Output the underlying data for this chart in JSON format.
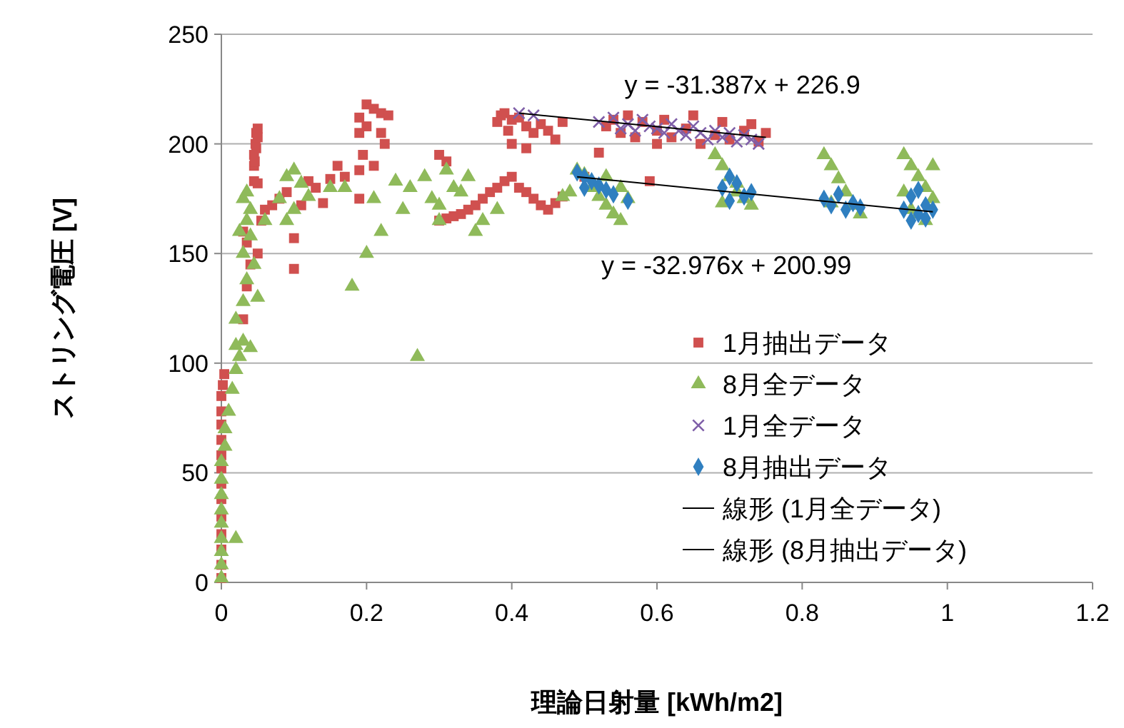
{
  "chart_data": {
    "type": "scatter",
    "xlabel": "理論日射量 [kWh/m2]",
    "ylabel": "ストリング電圧 [V]",
    "xlim": [
      0,
      1.2
    ],
    "xticks": [
      0,
      0.2,
      0.4,
      0.6,
      0.8,
      1,
      1.2
    ],
    "ylim": [
      0,
      250
    ],
    "yticks": [
      0,
      50,
      100,
      150,
      200,
      250
    ],
    "grid": "y",
    "legend": "right",
    "annotations": [
      "y = -31.387x + 226.9",
      "y = -32.976x + 200.99"
    ],
    "series": [
      {
        "name": "1月抽出データ",
        "color": "#d0504f",
        "marker": "square",
        "x": [
          0,
          0,
          0,
          0,
          0,
          0,
          0,
          0,
          0,
          0,
          0,
          0,
          0,
          0.002,
          0.004,
          0.045,
          0.045,
          0.047,
          0.048,
          0.05,
          0.048,
          0.046,
          0.05,
          0.045,
          0.05,
          0.03,
          0.035,
          0.04,
          0.05,
          0.055,
          0.06,
          0.07,
          0.08,
          0.09,
          0.03,
          0.035,
          0.1,
          0.1,
          0.13,
          0.15,
          0.17,
          0.16,
          0.19,
          0.11,
          0.14,
          0.12,
          0.19,
          0.2,
          0.21,
          0.22,
          0.2,
          0.19,
          0.22,
          0.23,
          0.225,
          0.195,
          0.21,
          0.19,
          0.3,
          0.31,
          0.3,
          0.31,
          0.32,
          0.33,
          0.34,
          0.35,
          0.36,
          0.37,
          0.38,
          0.39,
          0.4,
          0.41,
          0.42,
          0.43,
          0.44,
          0.45,
          0.46,
          0.47,
          0.38,
          0.385,
          0.39,
          0.4,
          0.395,
          0.41,
          0.42,
          0.43,
          0.44,
          0.45,
          0.46,
          0.47,
          0.4,
          0.42,
          0.5,
          0.52,
          0.59,
          0.53,
          0.55,
          0.57,
          0.58,
          0.6,
          0.6,
          0.62,
          0.64,
          0.66,
          0.68,
          0.7,
          0.72,
          0.74,
          0.75,
          0.73,
          0.69,
          0.65,
          0.56,
          0.54,
          0.61
        ],
        "values": [
          2,
          8,
          15,
          22,
          30,
          38,
          45,
          52,
          58,
          65,
          72,
          78,
          85,
          90,
          95,
          190,
          195,
          200,
          205,
          203,
          198,
          192,
          207,
          183,
          182,
          120,
          135,
          145,
          150,
          165,
          170,
          172,
          175,
          178,
          160,
          155,
          143,
          157,
          180,
          184,
          185,
          190,
          188,
          172,
          173,
          183,
          212,
          218,
          216,
          214,
          208,
          205,
          205,
          213,
          200,
          195,
          190,
          175,
          195,
          192,
          165,
          166,
          167,
          168,
          170,
          172,
          175,
          178,
          180,
          183,
          185,
          180,
          178,
          175,
          172,
          170,
          173,
          176,
          210,
          213,
          214,
          211,
          206,
          212,
          208,
          205,
          209,
          206,
          202,
          210,
          200,
          198,
          185,
          196,
          183,
          208,
          205,
          203,
          210,
          206,
          200,
          203,
          207,
          200,
          204,
          202,
          206,
          201,
          205,
          209,
          210,
          213,
          213,
          211,
          211
        ]
      },
      {
        "name": "8月全データ",
        "color": "#8fba5a",
        "marker": "triangle",
        "x": [
          0,
          0,
          0,
          0,
          0,
          0,
          0,
          0,
          0,
          0.005,
          0.005,
          0.01,
          0.015,
          0.02,
          0.025,
          0.03,
          0.02,
          0.03,
          0.035,
          0.03,
          0.025,
          0.035,
          0.04,
          0.03,
          0.035,
          0.04,
          0.045,
          0.05,
          0.02,
          0.04,
          0.02,
          0.09,
          0.1,
          0.11,
          0.12,
          0.1,
          0.09,
          0.08,
          0.06,
          0.15,
          0.18,
          0.2,
          0.22,
          0.21,
          0.24,
          0.27,
          0.26,
          0.28,
          0.29,
          0.3,
          0.32,
          0.33,
          0.31,
          0.35,
          0.36,
          0.38,
          0.34,
          0.17,
          0.25,
          0.3,
          0.48,
          0.49,
          0.5,
          0.51,
          0.52,
          0.53,
          0.54,
          0.55,
          0.56,
          0.47,
          0.53,
          0.55,
          0.68,
          0.69,
          0.7,
          0.71,
          0.72,
          0.73,
          0.69,
          0.71,
          0.83,
          0.84,
          0.85,
          0.86,
          0.87,
          0.88,
          0.84,
          0.94,
          0.95,
          0.96,
          0.97,
          0.98,
          0.95,
          0.97,
          0.94,
          0.98,
          0.96
        ],
        "values": [
          2,
          8,
          14,
          20,
          27,
          33,
          40,
          47,
          55,
          62,
          70,
          78,
          88,
          97,
          103,
          110,
          120,
          128,
          138,
          150,
          160,
          165,
          170,
          175,
          178,
          158,
          145,
          130,
          108,
          107,
          20,
          185,
          188,
          182,
          176,
          170,
          165,
          175,
          165,
          180,
          135,
          150,
          160,
          175,
          183,
          103,
          180,
          185,
          175,
          172,
          180,
          178,
          188,
          160,
          165,
          170,
          185,
          180,
          170,
          165,
          178,
          188,
          186,
          180,
          176,
          172,
          168,
          165,
          175,
          176,
          185,
          180,
          195,
          190,
          185,
          178,
          175,
          172,
          173,
          182,
          195,
          190,
          184,
          178,
          172,
          168,
          173,
          195,
          190,
          185,
          180,
          175,
          170,
          165,
          178,
          190,
          168
        ]
      },
      {
        "name": "1月全データ",
        "color": "#7f5fa8",
        "marker": "cross",
        "x": [
          0.41,
          0.43,
          0.52,
          0.54,
          0.55,
          0.56,
          0.57,
          0.58,
          0.59,
          0.6,
          0.61,
          0.62,
          0.63,
          0.64,
          0.65,
          0.66,
          0.67,
          0.68,
          0.69,
          0.7,
          0.71,
          0.72,
          0.73,
          0.74
        ],
        "values": [
          214,
          213,
          210,
          212,
          207,
          209,
          206,
          211,
          208,
          207,
          205,
          209,
          206,
          204,
          208,
          205,
          202,
          206,
          203,
          205,
          201,
          204,
          202,
          200
        ]
      },
      {
        "name": "8月抽出データ",
        "color": "#2f7fc0",
        "marker": "diamond",
        "x": [
          0.49,
          0.5,
          0.51,
          0.52,
          0.53,
          0.54,
          0.56,
          0.5,
          0.69,
          0.7,
          0.71,
          0.72,
          0.73,
          0.7,
          0.83,
          0.84,
          0.85,
          0.86,
          0.87,
          0.88,
          0.94,
          0.95,
          0.96,
          0.97,
          0.98,
          0.95,
          0.96,
          0.97
        ],
        "values": [
          187,
          185,
          183,
          181,
          179,
          177,
          174,
          180,
          180,
          185,
          182,
          176,
          178,
          174,
          175,
          172,
          177,
          170,
          173,
          171,
          170,
          176,
          168,
          172,
          170,
          165,
          179,
          166
        ]
      },
      {
        "name": "線形 (1月全データ)",
        "type": "line",
        "color": "#000000",
        "marker": "none",
        "x": [
          0.41,
          0.75
        ],
        "values": [
          214,
          203
        ]
      },
      {
        "name": "線形 (8月抽出データ)",
        "type": "line",
        "color": "#000000",
        "marker": "none",
        "x": [
          0.49,
          0.98
        ],
        "values": [
          185,
          169
        ]
      }
    ]
  }
}
